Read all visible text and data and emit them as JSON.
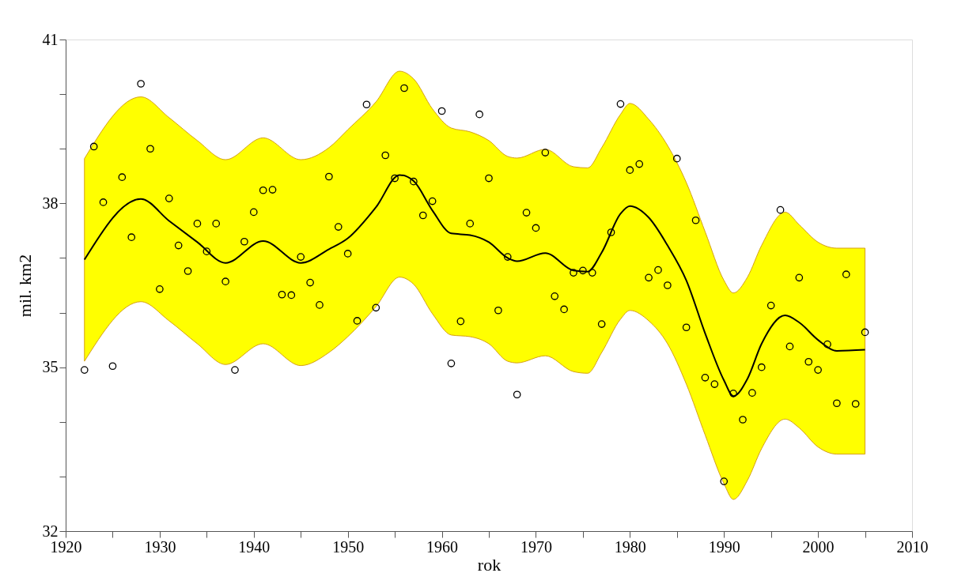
{
  "chart_data": {
    "type": "scatter",
    "xlabel": "rok",
    "ylabel": "mil. km2",
    "xlim": [
      1920,
      2010
    ],
    "xticks": [
      1920,
      {
        "value": 1925,
        "label": null
      },
      1930,
      {
        "value": 1935,
        "label": null
      },
      1940,
      {
        "value": 1945,
        "label": null
      },
      1950,
      {
        "value": 1955,
        "label": null
      },
      1960,
      {
        "value": 1965,
        "label": null
      },
      1970,
      {
        "value": 1975,
        "label": null
      },
      1980,
      {
        "value": 1985,
        "label": null
      },
      1990,
      {
        "value": 1995,
        "label": null
      },
      2000,
      {
        "value": 2005,
        "label": null
      },
      2010
    ],
    "ylim": [
      32,
      41
    ],
    "yticks": [
      32,
      {
        "value": 33,
        "label": null
      },
      {
        "value": 34,
        "label": null
      },
      35,
      {
        "value": 36,
        "label": null
      },
      {
        "value": 37,
        "label": null
      },
      38,
      {
        "value": 39,
        "label": null
      },
      {
        "value": 40,
        "label": null
      },
      41
    ],
    "grid": false,
    "series": [
      {
        "type": "line",
        "color": "#000000",
        "line_style": "solid",
        "marker": "none",
        "x": [
          1922,
          1928,
          1931,
          1934,
          1937,
          1941,
          1945,
          1948,
          1950,
          1953,
          1955.5,
          1957,
          1959,
          1961,
          1963,
          1965,
          1967,
          1968,
          1971,
          1974,
          1975.5,
          1977,
          1979,
          1980,
          1982,
          1984,
          1986,
          1988,
          1990,
          1991,
          1992.5,
          1994,
          1996.5,
          1998,
          2000,
          2002,
          2005
        ],
        "values": [
          36.97,
          38.08,
          37.68,
          37.29,
          36.91,
          37.31,
          36.91,
          37.16,
          37.36,
          37.93,
          38.52,
          38.41,
          37.87,
          37.45,
          37.42,
          37.29,
          37.0,
          36.94,
          37.09,
          36.77,
          36.75,
          37.1,
          37.81,
          37.95,
          37.74,
          37.23,
          36.59,
          35.62,
          34.76,
          34.47,
          34.79,
          35.43,
          35.95,
          35.82,
          35.5,
          35.3,
          35.32
        ],
        "upper": [
          38.82,
          39.95,
          39.57,
          39.15,
          38.8,
          39.2,
          38.8,
          39.02,
          39.35,
          39.86,
          40.42,
          40.28,
          39.73,
          39.38,
          39.31,
          39.15,
          38.86,
          38.83,
          38.99,
          38.67,
          38.65,
          39.02,
          39.63,
          39.83,
          39.54,
          39.06,
          38.38,
          37.48,
          36.59,
          36.36,
          36.65,
          37.23,
          37.84,
          37.61,
          37.29,
          37.18,
          37.18
        ],
        "lower": [
          35.11,
          36.2,
          35.85,
          35.43,
          35.05,
          35.43,
          35.03,
          35.27,
          35.56,
          36.11,
          36.65,
          36.52,
          35.98,
          35.59,
          35.56,
          35.43,
          35.11,
          35.08,
          35.21,
          34.92,
          34.89,
          35.27,
          35.88,
          36.04,
          35.85,
          35.43,
          34.69,
          33.76,
          32.87,
          32.58,
          32.93,
          33.51,
          34.05,
          33.89,
          33.54,
          33.41,
          33.41
        ]
      },
      {
        "color": "#000000",
        "marker": "circle",
        "x": [
          1922,
          1923,
          1924,
          1925,
          1926,
          1927,
          1928,
          1929,
          1930,
          1931,
          1932,
          1933,
          1934,
          1935,
          1936,
          1937,
          1938,
          1939,
          1940,
          1941,
          1942,
          1943,
          1944,
          1945,
          1946,
          1947,
          1948,
          1949,
          1950,
          1951,
          1952,
          1953,
          1954,
          1955,
          1956,
          1957,
          1958,
          1959,
          1960,
          1961,
          1962,
          1963,
          1964,
          1965,
          1966,
          1967,
          1968,
          1969,
          1970,
          1971,
          1972,
          1973,
          1974,
          1975,
          1976,
          1977,
          1978,
          1979,
          1980,
          1981,
          1982,
          1983,
          1984,
          1985,
          1986,
          1987,
          1988,
          1989,
          1990,
          1991,
          1992,
          1993,
          1994,
          1995,
          1996,
          1997,
          1998,
          1999,
          2000,
          2001,
          2002,
          2003,
          2004,
          2005
        ],
        "values": [
          34.95,
          39.04,
          38.02,
          35.02,
          38.48,
          37.38,
          40.19,
          39.0,
          36.43,
          38.09,
          37.23,
          36.76,
          37.63,
          37.12,
          37.63,
          36.57,
          34.95,
          37.3,
          37.84,
          38.24,
          38.25,
          36.33,
          36.32,
          37.02,
          36.55,
          36.14,
          38.49,
          37.57,
          37.08,
          35.85,
          39.81,
          36.09,
          38.88,
          38.46,
          40.11,
          38.4,
          37.78,
          38.04,
          39.69,
          35.07,
          35.84,
          37.63,
          39.63,
          38.46,
          36.04,
          37.02,
          34.5,
          37.83,
          37.55,
          38.93,
          36.3,
          36.06,
          36.73,
          36.77,
          36.73,
          35.79,
          37.47,
          39.82,
          38.61,
          38.72,
          36.64,
          36.78,
          36.5,
          38.82,
          35.73,
          37.69,
          34.81,
          34.69,
          32.91,
          34.52,
          34.04,
          34.53,
          35.0,
          36.13,
          37.88,
          35.38,
          36.64,
          35.1,
          34.95,
          35.42,
          34.34,
          36.7,
          34.33,
          35.64
        ]
      }
    ]
  }
}
